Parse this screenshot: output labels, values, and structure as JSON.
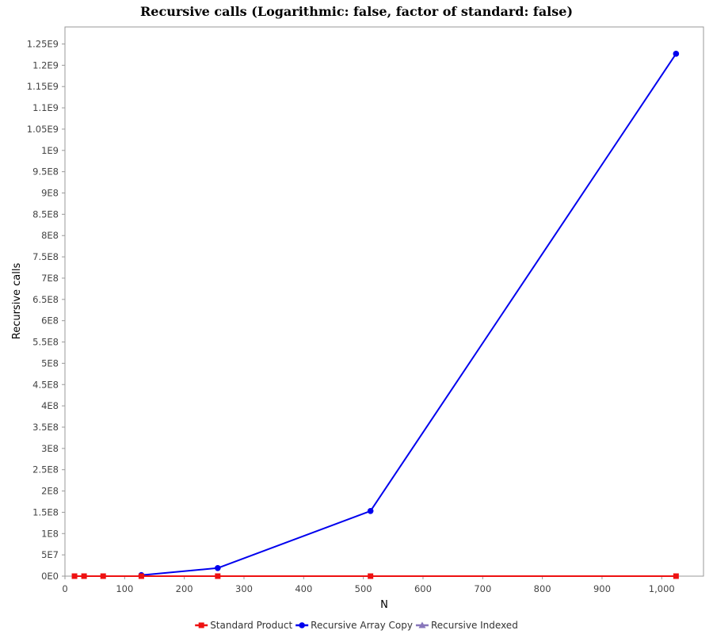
{
  "chart_data": {
    "type": "line",
    "title": "Recursive calls (Logarithmic: false, factor of standard: false)",
    "xlabel": "N",
    "ylabel": "Recursive calls",
    "xlim": [
      0,
      1070
    ],
    "ylim": [
      0,
      1290000000
    ],
    "x_ticks": [
      0,
      100,
      200,
      300,
      400,
      500,
      600,
      700,
      800,
      900,
      1000
    ],
    "x_tick_labels": [
      "0",
      "100",
      "200",
      "300",
      "400",
      "500",
      "600",
      "700",
      "800",
      "900",
      "1,000"
    ],
    "y_ticks": [
      0,
      50000000,
      100000000,
      150000000,
      200000000,
      250000000,
      300000000,
      350000000,
      400000000,
      450000000,
      500000000,
      550000000,
      600000000,
      650000000,
      700000000,
      750000000,
      800000000,
      850000000,
      900000000,
      950000000,
      1000000000,
      1050000000,
      1100000000,
      1150000000,
      1200000000,
      1250000000
    ],
    "y_tick_labels": [
      "0E0",
      "5E7",
      "1E8",
      "1.5E8",
      "2E8",
      "2.5E8",
      "3E8",
      "3.5E8",
      "4E8",
      "4.5E8",
      "5E8",
      "5.5E8",
      "6E8",
      "6.5E8",
      "7E8",
      "7.5E8",
      "8E8",
      "8.5E8",
      "9E8",
      "9.5E8",
      "1E9",
      "1.05E9",
      "1.1E9",
      "1.15E9",
      "1.2E9",
      "1.25E9"
    ],
    "grid": false,
    "legend_position": "bottom",
    "series": [
      {
        "name": "Standard Product",
        "color": "#ee1111",
        "marker": "square",
        "points": [
          {
            "x": 16,
            "y": 0
          },
          {
            "x": 32,
            "y": 0
          },
          {
            "x": 64,
            "y": 0
          },
          {
            "x": 128,
            "y": 0
          },
          {
            "x": 256,
            "y": 0
          },
          {
            "x": 512,
            "y": 0
          },
          {
            "x": 1024,
            "y": 0
          }
        ]
      },
      {
        "name": "Recursive Array Copy",
        "color": "#0000ee",
        "marker": "circle",
        "points": [
          {
            "x": 128,
            "y": 2400000
          },
          {
            "x": 256,
            "y": 19000000
          },
          {
            "x": 512,
            "y": 153000000
          },
          {
            "x": 1024,
            "y": 1227000000
          }
        ]
      },
      {
        "name": "Recursive Indexed",
        "color": "#8877bb",
        "marker": "triangle",
        "points": []
      }
    ]
  }
}
